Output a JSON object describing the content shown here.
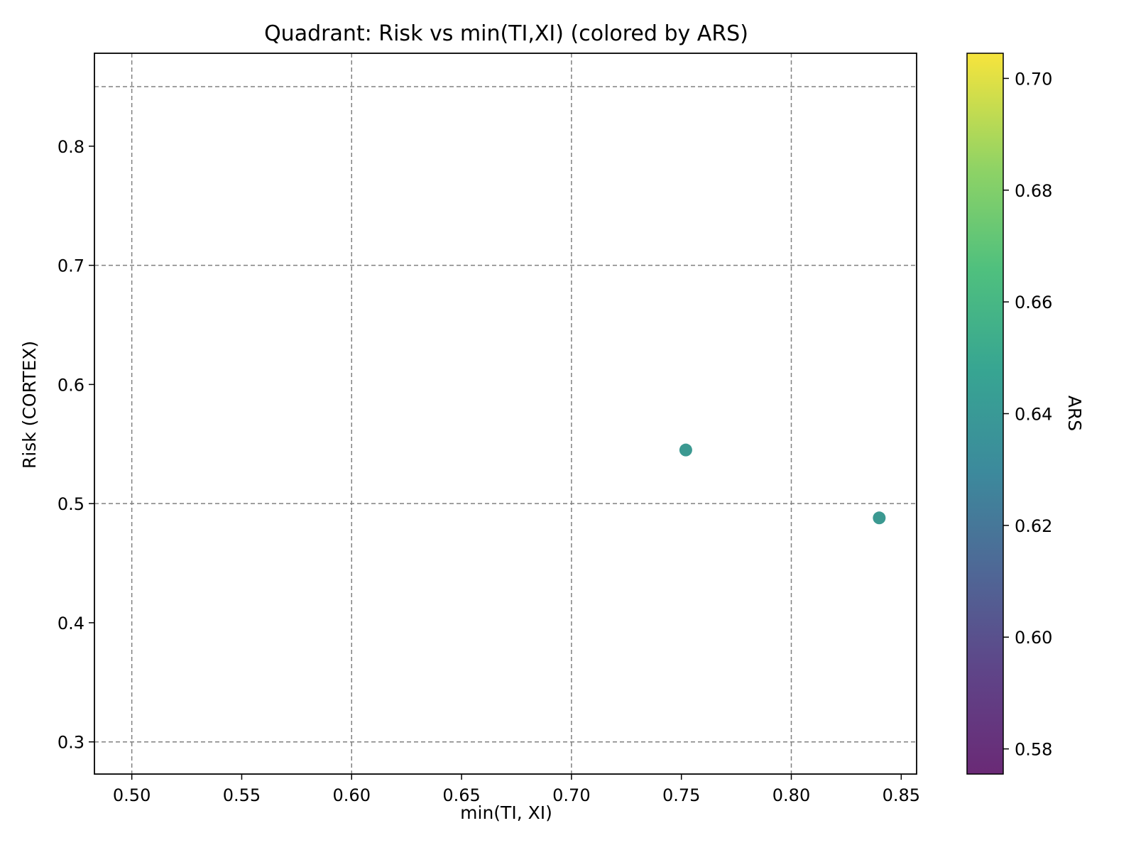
{
  "chart_data": {
    "type": "scatter",
    "title": "Quadrant: Risk vs min(TI,XI) (colored by ARS)",
    "xlabel": "min(TI, XI)",
    "ylabel": "Risk (CORTEX)",
    "xlim": [
      0.483,
      0.857
    ],
    "ylim": [
      0.273,
      0.878
    ],
    "x_ticks": [
      0.5,
      0.55,
      0.6,
      0.65,
      0.7,
      0.75,
      0.8,
      0.85
    ],
    "x_tick_labels": [
      "0.50",
      "0.55",
      "0.60",
      "0.65",
      "0.70",
      "0.75",
      "0.80",
      "0.85"
    ],
    "y_ticks": [
      0.3,
      0.4,
      0.5,
      0.6,
      0.7,
      0.8
    ],
    "y_tick_labels": [
      "0.3",
      "0.4",
      "0.5",
      "0.6",
      "0.7",
      "0.8"
    ],
    "quadrant_lines": {
      "vertical": [
        0.5,
        0.6,
        0.7,
        0.8
      ],
      "horizontal": [
        0.3,
        0.5,
        0.7,
        0.85
      ]
    },
    "points": [
      {
        "x": 0.752,
        "y": 0.545,
        "ars": 0.637
      },
      {
        "x": 0.84,
        "y": 0.488,
        "ars": 0.639
      }
    ],
    "point_color": "#2a9088",
    "colorbar": {
      "label": "ARS",
      "colormap": "viridis",
      "range": [
        0.5755,
        0.7045
      ],
      "ticks": [
        0.58,
        0.6,
        0.62,
        0.64,
        0.66,
        0.68,
        0.7
      ],
      "tick_labels": [
        "0.58",
        "0.60",
        "0.62",
        "0.64",
        "0.66",
        "0.68",
        "0.70"
      ]
    },
    "grid": true
  }
}
